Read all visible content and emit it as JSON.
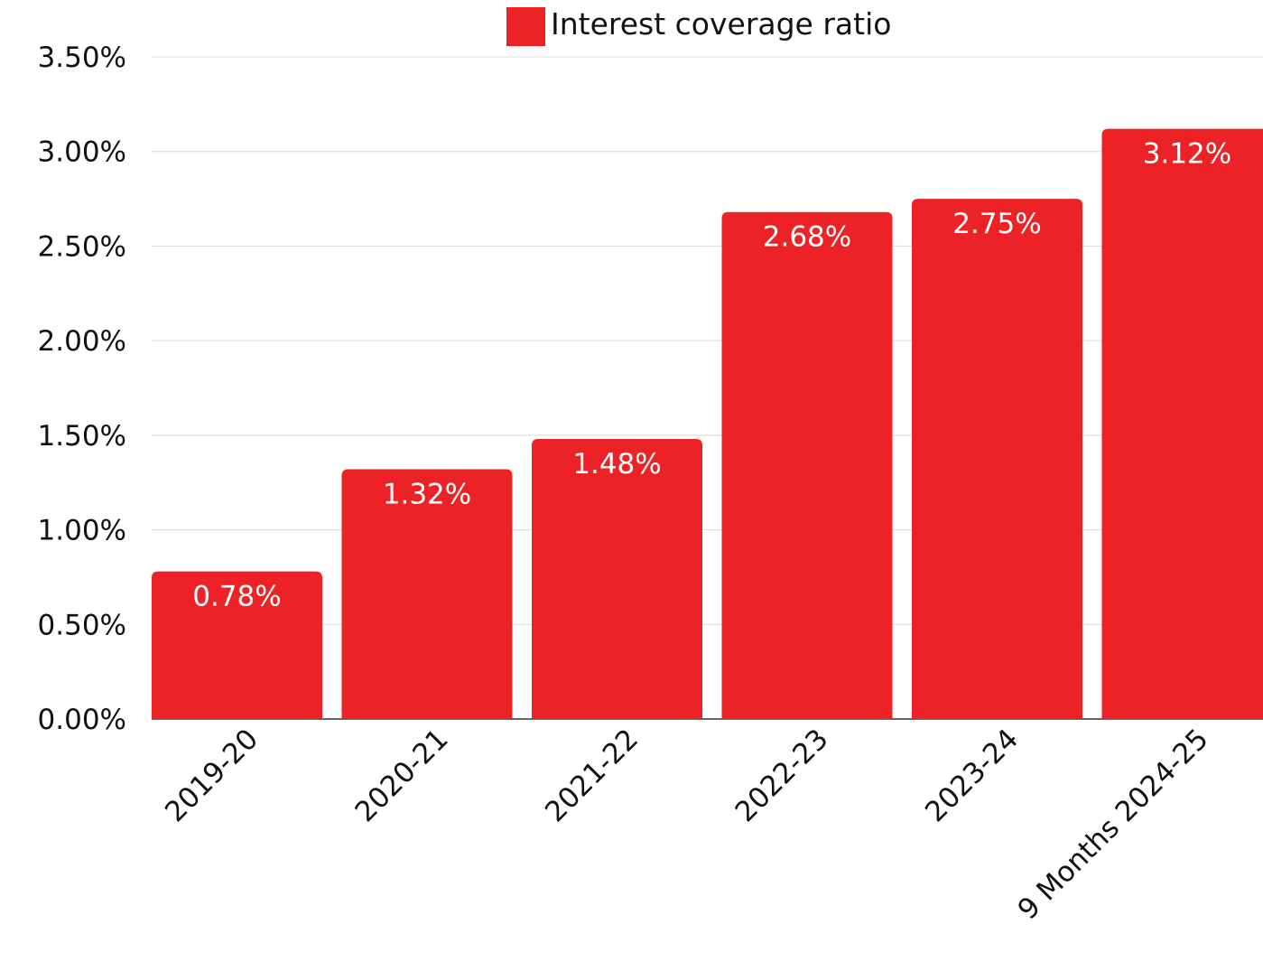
{
  "chart_data": {
    "type": "bar",
    "categories": [
      "2019-20",
      "2020-21",
      "2021-22",
      "2022-23",
      "2023-24",
      "9 Months 2024-25"
    ],
    "series": [
      {
        "name": "Interest coverage ratio",
        "values": [
          0.78,
          1.32,
          1.48,
          2.68,
          2.75,
          3.12
        ],
        "data_labels": [
          "0.78%",
          "1.32%",
          "1.48%",
          "2.68%",
          "2.75%",
          "3.12%"
        ],
        "color": "#ec2227"
      }
    ],
    "y_ticks": [
      0,
      0.5,
      1.0,
      1.5,
      2.0,
      2.5,
      3.0,
      3.5
    ],
    "y_tick_labels": [
      "0.00%",
      "0.50%",
      "1.00%",
      "1.50%",
      "2.00%",
      "2.50%",
      "3.00%",
      "3.50%"
    ],
    "ylim": [
      0,
      3.5
    ],
    "title": "",
    "xlabel": "",
    "ylabel": "",
    "grid": true,
    "legend_position": "top-center",
    "gridline_color": "#d9d9d9",
    "text_color": "#111111"
  }
}
